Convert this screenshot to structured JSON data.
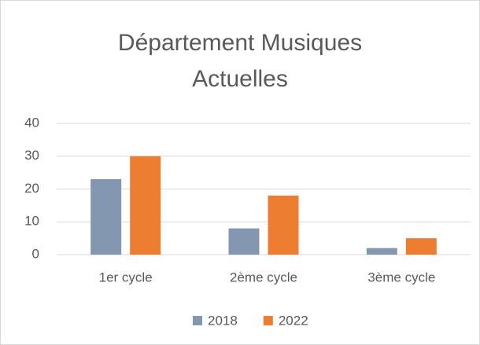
{
  "chart_data": {
    "type": "bar",
    "title": "Département Musiques Actuelles",
    "categories": [
      "1er cycle",
      "2ème cycle",
      "3ème cycle"
    ],
    "series": [
      {
        "name": "2018",
        "color": "#8497b0",
        "values": [
          23,
          8,
          2
        ]
      },
      {
        "name": "2022",
        "color": "#ed7d31",
        "values": [
          30,
          18,
          5
        ]
      }
    ],
    "ylim": [
      0,
      40
    ],
    "yticks": [
      0,
      10,
      20,
      30,
      40
    ],
    "grid": true,
    "legend": "bottom"
  }
}
